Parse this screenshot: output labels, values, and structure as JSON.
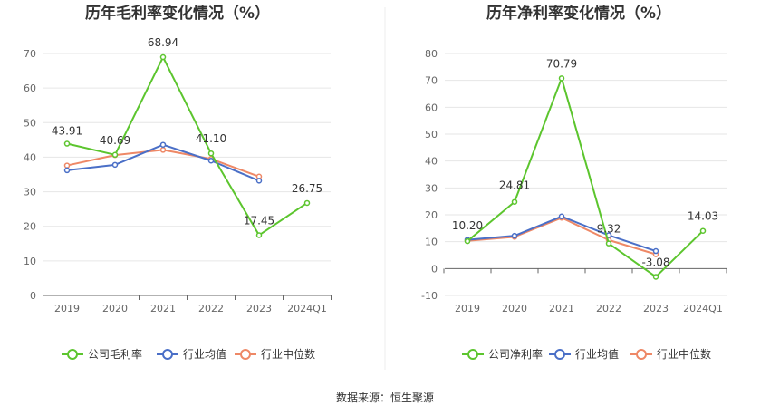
{
  "source_note": "数据来源：恒生聚源",
  "chart_data": [
    {
      "type": "line",
      "title": "历年毛利率变化情况（%）",
      "categories": [
        "2019",
        "2020",
        "2021",
        "2022",
        "2023",
        "2024Q1"
      ],
      "ylim": [
        0,
        70
      ],
      "yticks": [
        0,
        10,
        20,
        30,
        40,
        50,
        60,
        70
      ],
      "grid": true,
      "legend_position": "bottom",
      "series": [
        {
          "name": "公司毛利率",
          "color": "#5cc52e",
          "values": [
            43.91,
            40.69,
            68.94,
            41.1,
            17.45,
            26.75
          ],
          "labels": true
        },
        {
          "name": "行业均值",
          "color": "#4a6fc7",
          "values": [
            36.2,
            37.8,
            43.6,
            39.0,
            33.2,
            null
          ],
          "labels": false
        },
        {
          "name": "行业中位数",
          "color": "#ee8866",
          "values": [
            37.6,
            40.6,
            42.1,
            39.5,
            34.4,
            null
          ],
          "labels": false
        }
      ]
    },
    {
      "type": "line",
      "title": "历年净利率变化情况（%）",
      "categories": [
        "2019",
        "2020",
        "2021",
        "2022",
        "2023",
        "2024Q1"
      ],
      "ylim": [
        -10,
        80
      ],
      "yticks": [
        -10,
        0,
        10,
        20,
        30,
        40,
        50,
        60,
        70,
        80
      ],
      "grid": true,
      "legend_position": "bottom",
      "series": [
        {
          "name": "公司净利率",
          "color": "#5cc52e",
          "values": [
            10.2,
            24.81,
            70.79,
            9.32,
            -3.08,
            14.03
          ],
          "labels": true
        },
        {
          "name": "行业均值",
          "color": "#4a6fc7",
          "values": [
            10.7,
            12.2,
            19.4,
            12.4,
            6.5,
            null
          ],
          "labels": false
        },
        {
          "name": "行业中位数",
          "color": "#ee8866",
          "values": [
            10.3,
            11.8,
            18.9,
            10.6,
            5.3,
            null
          ],
          "labels": false
        }
      ]
    }
  ]
}
